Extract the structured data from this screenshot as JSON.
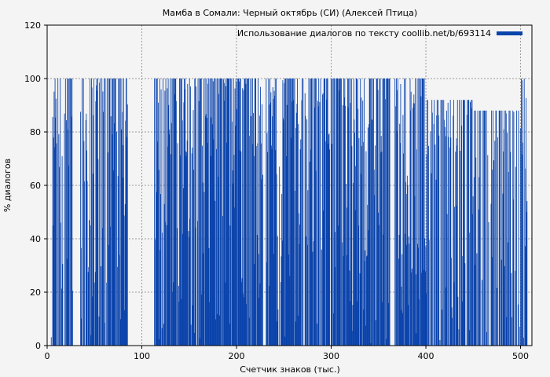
{
  "chart_data": {
    "type": "bar",
    "title": "Мамба в Сомали: Черный октябрь (СИ) (Алексей Птица)",
    "xlabel": "Счетчик знаков (тыс.)",
    "ylabel": "% диалогов",
    "xlim": [
      0,
      512
    ],
    "ylim": [
      0,
      120
    ],
    "xticks": [
      0,
      100,
      200,
      300,
      400,
      500
    ],
    "yticks": [
      0,
      20,
      40,
      60,
      80,
      100,
      120
    ],
    "grid": true,
    "legend_position": "top-right",
    "series": [
      {
        "name": "Использование диалогов по тексту coollib.net/b/693114",
        "color": "#0a43ab",
        "segments": [
          {
            "from": 4,
            "to": 27,
            "density": 0.75,
            "min": 0,
            "max": 100,
            "gap_after": true
          },
          {
            "from": 35,
            "to": 85,
            "density": 0.85,
            "min": 0,
            "max": 100
          },
          {
            "from": 113,
            "to": 160,
            "density": 0.85,
            "min": 0,
            "max": 100
          },
          {
            "from": 160,
            "to": 228,
            "density": 0.9,
            "min": 0,
            "max": 100
          },
          {
            "from": 231,
            "to": 262,
            "density": 0.8,
            "min": 0,
            "max": 100
          },
          {
            "from": 262,
            "to": 300,
            "density": 0.75,
            "min": 0,
            "max": 100
          },
          {
            "from": 300,
            "to": 362,
            "density": 0.85,
            "min": 0,
            "max": 100
          },
          {
            "from": 367,
            "to": 400,
            "density": 0.85,
            "min": 0,
            "max": 100
          },
          {
            "from": 400,
            "to": 450,
            "density": 0.75,
            "min": 0,
            "max": 92
          },
          {
            "from": 450,
            "to": 498,
            "density": 0.65,
            "min": 0,
            "max": 88
          },
          {
            "from": 499,
            "to": 507,
            "density": 0.9,
            "min": 0,
            "max": 100
          }
        ]
      }
    ]
  }
}
